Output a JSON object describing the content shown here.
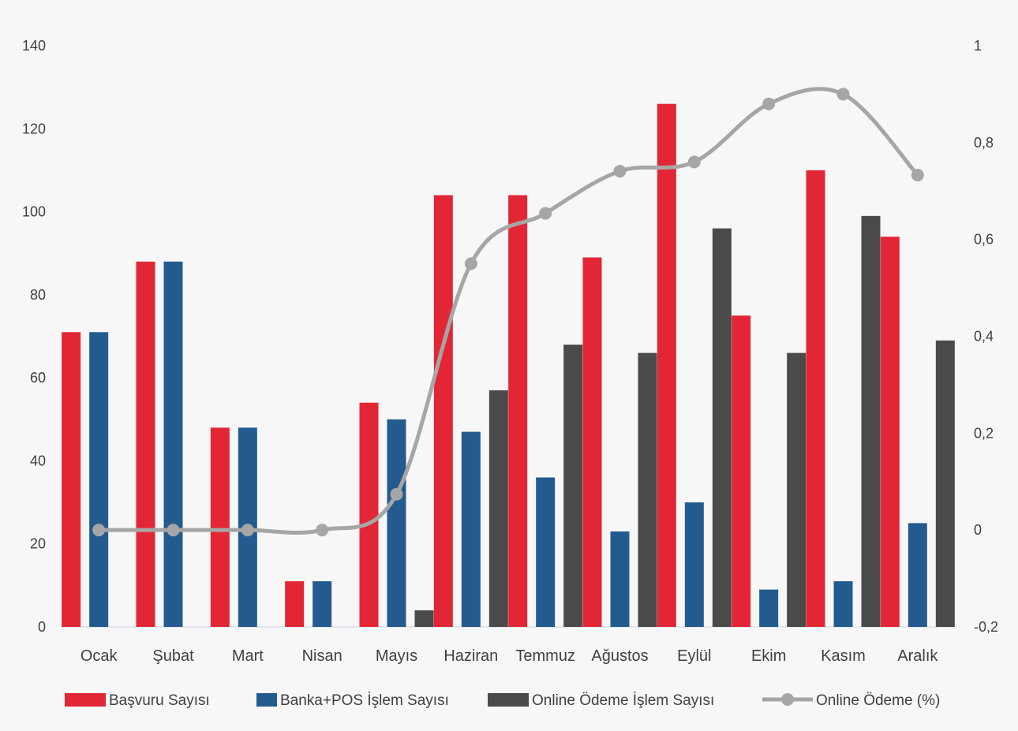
{
  "chart_data": {
    "type": "bar",
    "title": "",
    "categories": [
      "Ocak",
      "Şubat",
      "Mart",
      "Nisan",
      "Mayıs",
      "Haziran",
      "Temmuz",
      "Ağustos",
      "Eylül",
      "Ekim",
      "Kasım",
      "Aralık"
    ],
    "series": [
      {
        "name": "Başvuru Sayısı",
        "type": "bar",
        "axis": "left",
        "color": "#e32636",
        "values": [
          71,
          88,
          48,
          11,
          54,
          104,
          104,
          89,
          126,
          75,
          110,
          94
        ]
      },
      {
        "name": "Banka+POS İşlem Sayısı",
        "type": "bar",
        "axis": "left",
        "color": "#245b8e",
        "values": [
          71,
          88,
          48,
          11,
          50,
          47,
          36,
          23,
          30,
          9,
          11,
          25
        ]
      },
      {
        "name": "Online Ödeme  İşlem Sayısı",
        "type": "bar",
        "axis": "left",
        "color": "#4a4a4a",
        "values": [
          0,
          0,
          0,
          0,
          4,
          57,
          68,
          66,
          96,
          66,
          99,
          69
        ]
      },
      {
        "name": "Online Ödeme (%)",
        "type": "line",
        "axis": "right",
        "color": "#a6a6a6",
        "values": [
          0,
          0,
          0,
          0,
          0.074,
          0.55,
          0.654,
          0.741,
          0.76,
          0.88,
          0.9,
          0.733
        ]
      }
    ],
    "y_left": {
      "min": 0,
      "max": 140,
      "ticks": [
        "0",
        "20",
        "40",
        "60",
        "80",
        "100",
        "120",
        "140"
      ]
    },
    "y_right": {
      "min": -0.2,
      "max": 1,
      "ticks": [
        "-0,2",
        "0",
        "0,2",
        "0,4",
        "0,6",
        "0,8",
        "1"
      ]
    },
    "legend": {
      "placement": "bottom"
    },
    "grid": false
  }
}
